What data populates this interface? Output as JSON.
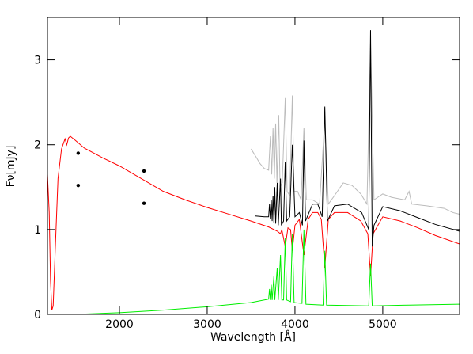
{
  "chart_data": {
    "type": "line",
    "x_label": "Wavelength [Å]",
    "y_label": "Fν[mJy]",
    "xlim": [
      1180,
      5875
    ],
    "ylim": [
      0,
      3.5
    ],
    "xticks": [
      2000,
      3000,
      4000,
      5000
    ],
    "yticks": [
      0,
      1,
      2,
      3
    ],
    "series": [
      {
        "color": "#bbbbbb",
        "x": [
          3500,
          3530,
          3560,
          3600,
          3650,
          3700,
          3720,
          3735,
          3750,
          3765,
          3780,
          3795,
          3815,
          3830,
          3855,
          3889,
          3910,
          3940,
          3970,
          3990,
          4030,
          4070,
          4102,
          4130,
          4200,
          4280,
          4340,
          4380,
          4450,
          4550,
          4650,
          4750,
          4820,
          4861,
          4900,
          5000,
          5100,
          5250,
          5300,
          5330,
          5500,
          5700,
          5800,
          5875
        ],
        "values": [
          1.95,
          1.9,
          1.85,
          1.78,
          1.72,
          1.7,
          2.1,
          1.65,
          2.2,
          1.6,
          2.25,
          1.55,
          2.35,
          1.5,
          1.55,
          2.55,
          1.45,
          1.4,
          2.58,
          1.45,
          1.45,
          1.35,
          2.2,
          1.35,
          1.35,
          1.3,
          2.3,
          1.3,
          1.4,
          1.55,
          1.52,
          1.42,
          1.3,
          3.2,
          1.35,
          1.42,
          1.38,
          1.35,
          1.45,
          1.3,
          1.28,
          1.25,
          1.2,
          1.18
        ]
      },
      {
        "color": "#ff0000",
        "x": [
          1180,
          1200,
          1215,
          1230,
          1245,
          1270,
          1300,
          1340,
          1380,
          1400,
          1420,
          1440,
          1500,
          1600,
          1800,
          2000,
          2250,
          2500,
          2750,
          3000,
          3250,
          3500,
          3700,
          3800,
          3835,
          3850,
          3889,
          3920,
          3950,
          3970,
          4000,
          4050,
          4102,
          4150,
          4200,
          4260,
          4300,
          4340,
          4380,
          4450,
          4600,
          4750,
          4830,
          4861,
          4890,
          5000,
          5200,
          5400,
          5600,
          5875
        ],
        "values": [
          1.65,
          1.2,
          0.4,
          0.05,
          0.1,
          0.8,
          1.6,
          1.95,
          2.07,
          2.0,
          2.08,
          2.1,
          2.05,
          1.96,
          1.85,
          1.75,
          1.6,
          1.45,
          1.35,
          1.26,
          1.18,
          1.1,
          1.03,
          0.98,
          0.95,
          1.0,
          0.8,
          1.02,
          1.0,
          0.75,
          1.05,
          1.12,
          0.7,
          1.12,
          1.2,
          1.2,
          1.12,
          0.55,
          1.12,
          1.2,
          1.2,
          1.1,
          0.95,
          0.45,
          0.95,
          1.15,
          1.1,
          1.02,
          0.93,
          0.83
        ]
      },
      {
        "color": "#000000",
        "x": [
          3550,
          3650,
          3700,
          3710,
          3720,
          3730,
          3740,
          3750,
          3760,
          3770,
          3780,
          3798,
          3810,
          3835,
          3845,
          3870,
          3889,
          3905,
          3940,
          3970,
          4000,
          4050,
          4085,
          4102,
          4120,
          4200,
          4260,
          4310,
          4340,
          4370,
          4450,
          4600,
          4760,
          4840,
          4861,
          4880,
          4900,
          5000,
          5200,
          5400,
          5600,
          5875
        ],
        "values": [
          1.16,
          1.15,
          1.15,
          1.3,
          1.12,
          1.35,
          1.1,
          1.4,
          1.08,
          1.5,
          1.07,
          1.55,
          1.05,
          1.6,
          1.05,
          1.1,
          1.8,
          1.1,
          1.15,
          2.0,
          1.15,
          1.2,
          1.05,
          2.05,
          1.1,
          1.3,
          1.3,
          1.15,
          2.45,
          1.1,
          1.28,
          1.3,
          1.2,
          1.0,
          3.35,
          0.8,
          1.05,
          1.27,
          1.22,
          1.14,
          1.06,
          0.98
        ]
      },
      {
        "color": "#00ee00",
        "x": [
          1180,
          1500,
          2000,
          2500,
          3000,
          3500,
          3700,
          3710,
          3720,
          3730,
          3740,
          3760,
          3770,
          3798,
          3810,
          3835,
          3850,
          3870,
          3889,
          3905,
          3950,
          3970,
          3990,
          4080,
          4102,
          4125,
          4320,
          4340,
          4360,
          4840,
          4861,
          4880,
          5300,
          5875
        ],
        "values": [
          0.0,
          0.0,
          0.02,
          0.05,
          0.09,
          0.14,
          0.18,
          0.3,
          0.17,
          0.35,
          0.17,
          0.45,
          0.17,
          0.55,
          0.17,
          0.7,
          0.17,
          0.17,
          0.9,
          0.17,
          0.15,
          0.95,
          0.14,
          0.13,
          1.0,
          0.12,
          0.11,
          0.75,
          0.11,
          0.1,
          0.6,
          0.1,
          0.11,
          0.12
        ]
      },
      {
        "type": "scatter",
        "color": "#000000",
        "x": [
          1530,
          1530,
          2280,
          2280
        ],
        "values": [
          1.9,
          1.52,
          1.69,
          1.31
        ]
      }
    ]
  }
}
